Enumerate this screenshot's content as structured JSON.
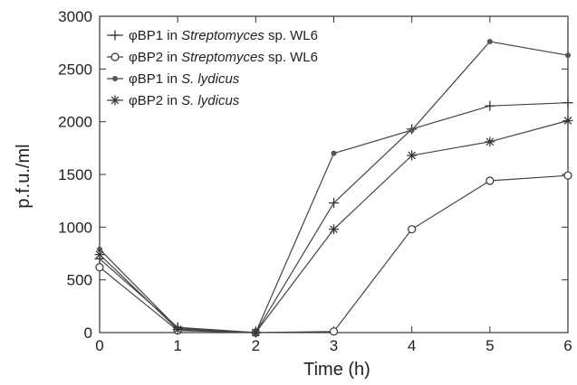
{
  "chart_data": {
    "type": "line",
    "xlabel": "Time (h)",
    "ylabel": "p.f.u./ml",
    "xlim": [
      0,
      6
    ],
    "ylim": [
      0,
      3000
    ],
    "x_ticks": [
      "0",
      "1",
      "2",
      "3",
      "4",
      "5",
      "6"
    ],
    "y_ticks": [
      "0",
      "500",
      "1000",
      "1500",
      "2000",
      "2500",
      "3000"
    ],
    "grid": false,
    "legend_position": "top-left",
    "x": [
      0,
      1,
      2,
      3,
      4,
      5,
      6
    ],
    "series": [
      {
        "name": "φBP1 in Streptomyces sp. WL6",
        "legend_parts": [
          "φBP1 in ",
          "Streptomyces",
          " sp. WL6"
        ],
        "marker": "plus",
        "values": [
          700,
          50,
          0,
          1230,
          1930,
          2150,
          2180
        ]
      },
      {
        "name": "φBP2 in Streptomyces sp. WL6",
        "legend_parts": [
          "φBP2 in ",
          "Streptomyces",
          " sp. WL6"
        ],
        "marker": "circle",
        "values": [
          620,
          20,
          0,
          10,
          980,
          1440,
          1490
        ]
      },
      {
        "name": "φBP1 in S. lydicus",
        "legend_parts": [
          "φBP1 in ",
          "S. lydicus",
          ""
        ],
        "marker": "dot",
        "values": [
          790,
          40,
          0,
          1700,
          1920,
          2760,
          2630
        ]
      },
      {
        "name": "φBP2 in S. lydicus",
        "legend_parts": [
          "φBP2 in ",
          "S. lydicus",
          ""
        ],
        "marker": "star",
        "values": [
          740,
          30,
          0,
          980,
          1680,
          1810,
          2010
        ]
      }
    ]
  }
}
